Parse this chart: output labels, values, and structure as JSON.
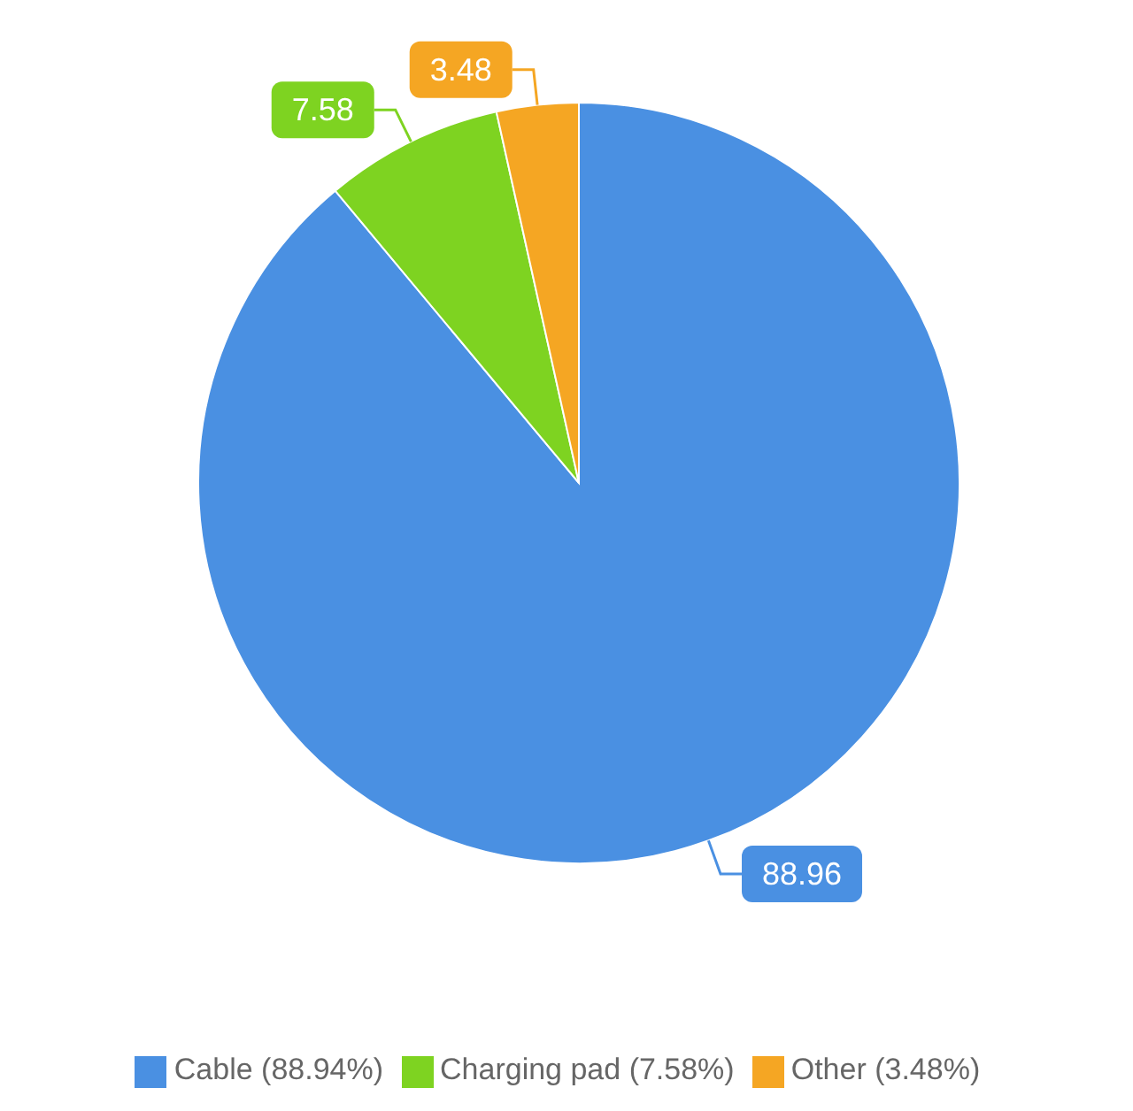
{
  "chart_data": {
    "type": "pie",
    "categories": [
      "Cable (88.94%)",
      "Charging pad (7.58%)",
      "Other (3.48%)"
    ],
    "values": [
      88.96,
      7.58,
      3.48
    ],
    "colors": [
      "#4a90e2",
      "#7ed321",
      "#f5a623"
    ],
    "data_labels": true,
    "legend": "bottom"
  }
}
